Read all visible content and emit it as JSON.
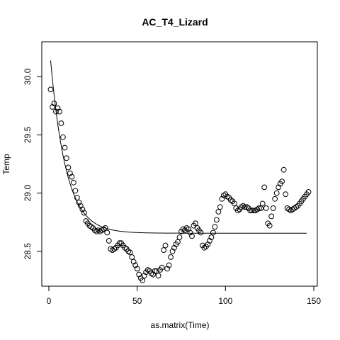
{
  "chart_data": {
    "type": "scatter",
    "title": "AC_T4_Lizard",
    "xlabel": "as.matrix(Time)",
    "ylabel": "Temp",
    "xlim": [
      -4,
      152
    ],
    "ylim": [
      28.2,
      30.3
    ],
    "xticks": [
      0,
      50,
      100,
      150
    ],
    "xtick_labels": [
      "0",
      "50",
      "100",
      "150"
    ],
    "yticks": [
      28.5,
      29.0,
      29.5,
      30.0
    ],
    "ytick_labels": [
      "28.5",
      "29.0",
      "29.5",
      "30.0"
    ],
    "grid": false,
    "series": [
      {
        "kind": "points",
        "marker": "open-circle",
        "x": [
          1,
          2,
          3,
          4,
          5,
          6,
          7,
          8,
          9,
          10,
          11,
          12,
          13,
          14,
          15,
          16,
          17,
          18,
          19,
          20,
          21,
          22,
          23,
          24,
          25,
          26,
          27,
          28,
          29,
          30,
          31,
          32,
          33,
          34,
          35,
          36,
          37,
          38,
          39,
          40,
          41,
          42,
          43,
          44,
          45,
          46,
          47,
          48,
          49,
          50,
          51,
          52,
          53,
          54,
          55,
          56,
          57,
          58,
          59,
          60,
          61,
          62,
          63,
          64,
          65,
          66,
          67,
          68,
          69,
          70,
          71,
          72,
          73,
          74,
          75,
          76,
          77,
          78,
          79,
          80,
          81,
          82,
          83,
          84,
          85,
          86,
          87,
          88,
          89,
          90,
          91,
          92,
          93,
          94,
          95,
          96,
          97,
          98,
          99,
          100,
          101,
          102,
          103,
          104,
          105,
          106,
          107,
          108,
          109,
          110,
          111,
          112,
          113,
          114,
          115,
          116,
          117,
          118,
          119,
          120,
          121,
          122,
          123,
          124,
          125,
          126,
          127,
          128,
          129,
          130,
          131,
          132,
          133,
          134,
          135,
          136,
          137,
          138,
          139,
          140,
          141,
          142,
          143,
          144,
          145,
          146,
          147
        ],
        "y": [
          29.89,
          29.74,
          29.77,
          29.7,
          29.73,
          29.7,
          29.6,
          29.48,
          29.39,
          29.3,
          29.22,
          29.17,
          29.14,
          29.09,
          29.02,
          28.96,
          28.92,
          28.89,
          28.86,
          28.83,
          28.76,
          28.74,
          28.72,
          28.71,
          28.7,
          28.68,
          28.67,
          28.68,
          28.67,
          28.68,
          28.69,
          28.7,
          28.66,
          28.59,
          28.52,
          28.51,
          28.52,
          28.53,
          28.55,
          28.57,
          28.57,
          28.55,
          28.53,
          28.52,
          28.5,
          28.49,
          28.45,
          28.41,
          28.38,
          28.35,
          28.3,
          28.27,
          28.25,
          28.29,
          28.32,
          28.34,
          28.33,
          28.31,
          28.3,
          28.33,
          28.33,
          28.29,
          28.34,
          28.36,
          28.51,
          28.55,
          28.35,
          28.38,
          28.45,
          28.5,
          28.53,
          28.56,
          28.58,
          28.62,
          28.67,
          28.69,
          28.68,
          28.7,
          28.69,
          28.66,
          28.63,
          28.72,
          28.74,
          28.7,
          28.68,
          28.66,
          28.55,
          28.53,
          28.54,
          28.56,
          28.59,
          28.62,
          28.66,
          28.71,
          28.77,
          28.84,
          28.88,
          28.95,
          28.98,
          28.99,
          28.97,
          28.96,
          28.94,
          28.93,
          28.91,
          28.87,
          28.85,
          28.86,
          28.88,
          28.89,
          28.88,
          28.88,
          28.87,
          28.85,
          28.85,
          28.85,
          28.85,
          28.86,
          28.87,
          28.87,
          28.91,
          29.05,
          28.87,
          28.74,
          28.72,
          28.8,
          28.87,
          28.95,
          29.0,
          29.05,
          29.08,
          29.1,
          29.2,
          28.99,
          28.87,
          28.86,
          28.85,
          28.86,
          28.87,
          28.88,
          28.89,
          28.91,
          28.93,
          28.95,
          28.97,
          28.99,
          29.01
        ]
      },
      {
        "kind": "fitted-line",
        "model": "28.655 + 1.4845*exp(-0.1135*(x-1))",
        "x_range": [
          1,
          146
        ]
      }
    ]
  }
}
